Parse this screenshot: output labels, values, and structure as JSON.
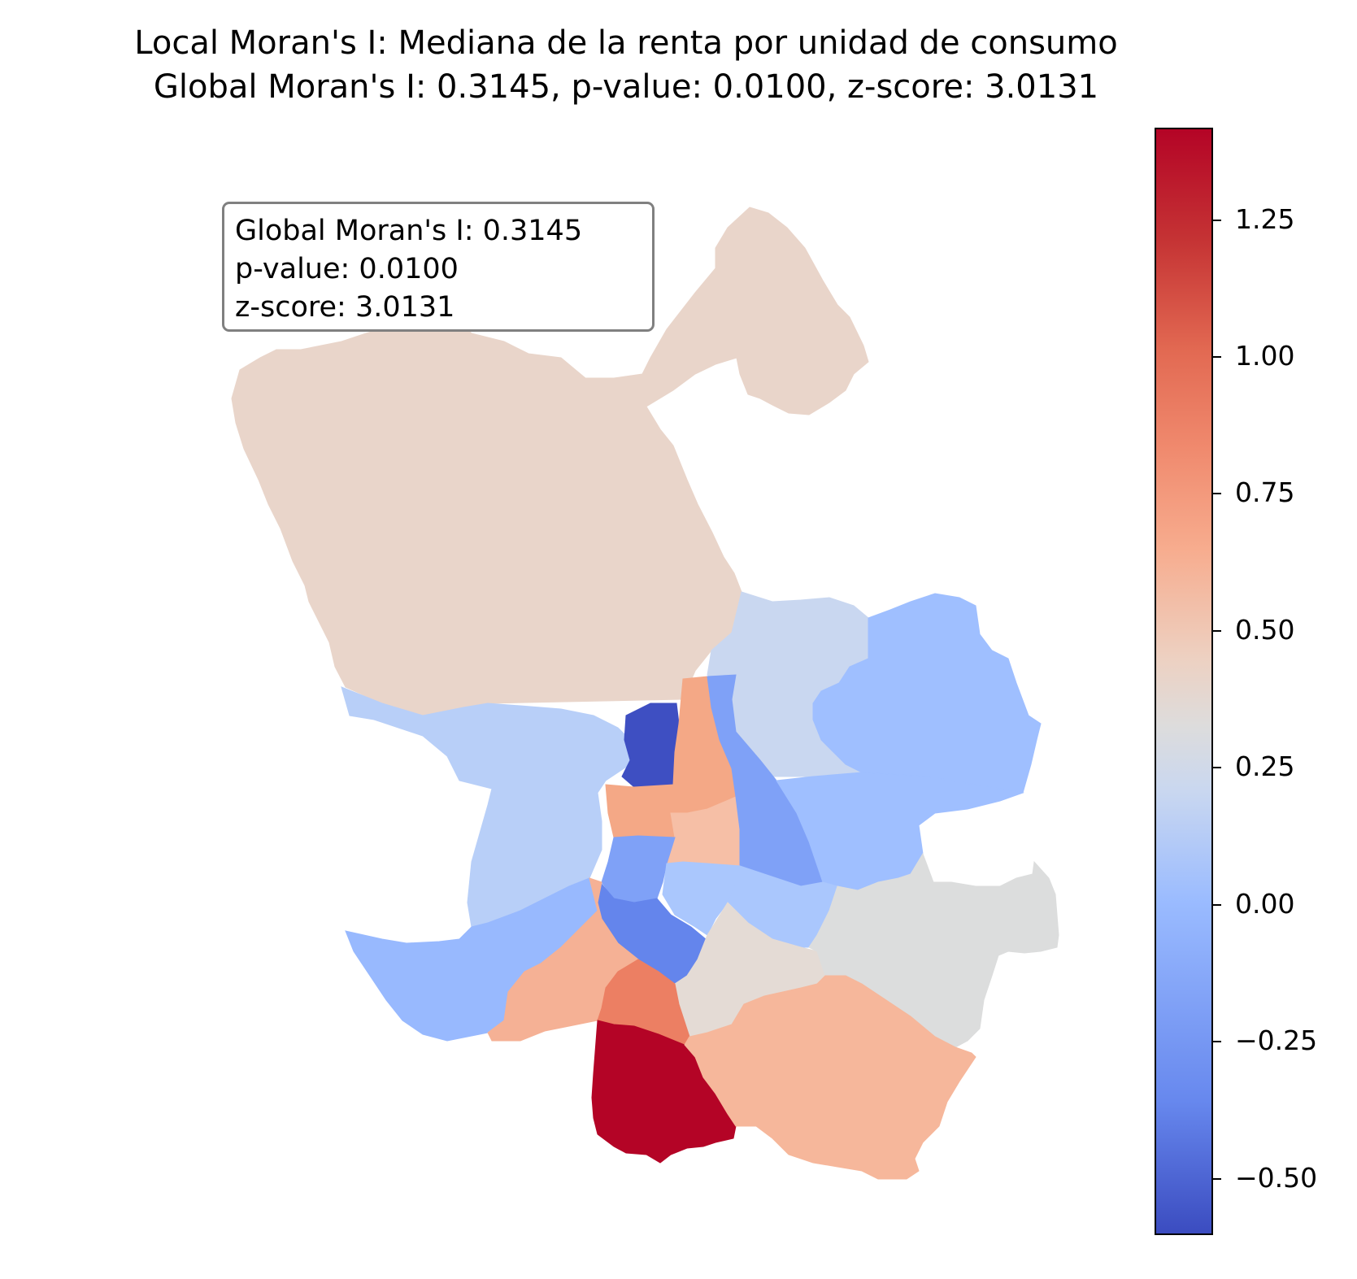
{
  "title": {
    "line1": "Local Moran's I: Mediana de la renta por unidad de consumo",
    "line2": "Global Moran's I: 0.3145, p-value: 0.0100, z-score: 3.0131"
  },
  "stats_box": {
    "moran": "Global Moran's I: 0.3145",
    "pvalue": "p-value: 0.0100",
    "zscore": "z-score: 3.0131"
  },
  "colorbar": {
    "colormap": "coolwarm",
    "range": [
      -0.65,
      1.42
    ],
    "ticks": [
      "−0.50",
      "−0.25",
      "0.00",
      "0.25",
      "0.50",
      "0.75",
      "1.00",
      "1.25"
    ]
  },
  "colors": {
    "north": "#e9d5ca",
    "northeast": "#c9d7f0",
    "east_blue": "#9fbfff",
    "west_light": "#b8cff8",
    "dark_center": "#3e4fc2",
    "orange_mid": "#f4a886",
    "peach": "#f6bfa6",
    "mid_blue": "#7fa1f7",
    "light_blue": "#aac7fd",
    "blue_sw": "#98b9fe",
    "blue_5": "#6485ec",
    "orange_sw": "#f5b195",
    "coral": "#ec7f63",
    "dark_red": "#b40426",
    "beige": "#e4dbd5",
    "grey_east": "#dcdddd",
    "salmon_se": "#f6b79b"
  }
}
